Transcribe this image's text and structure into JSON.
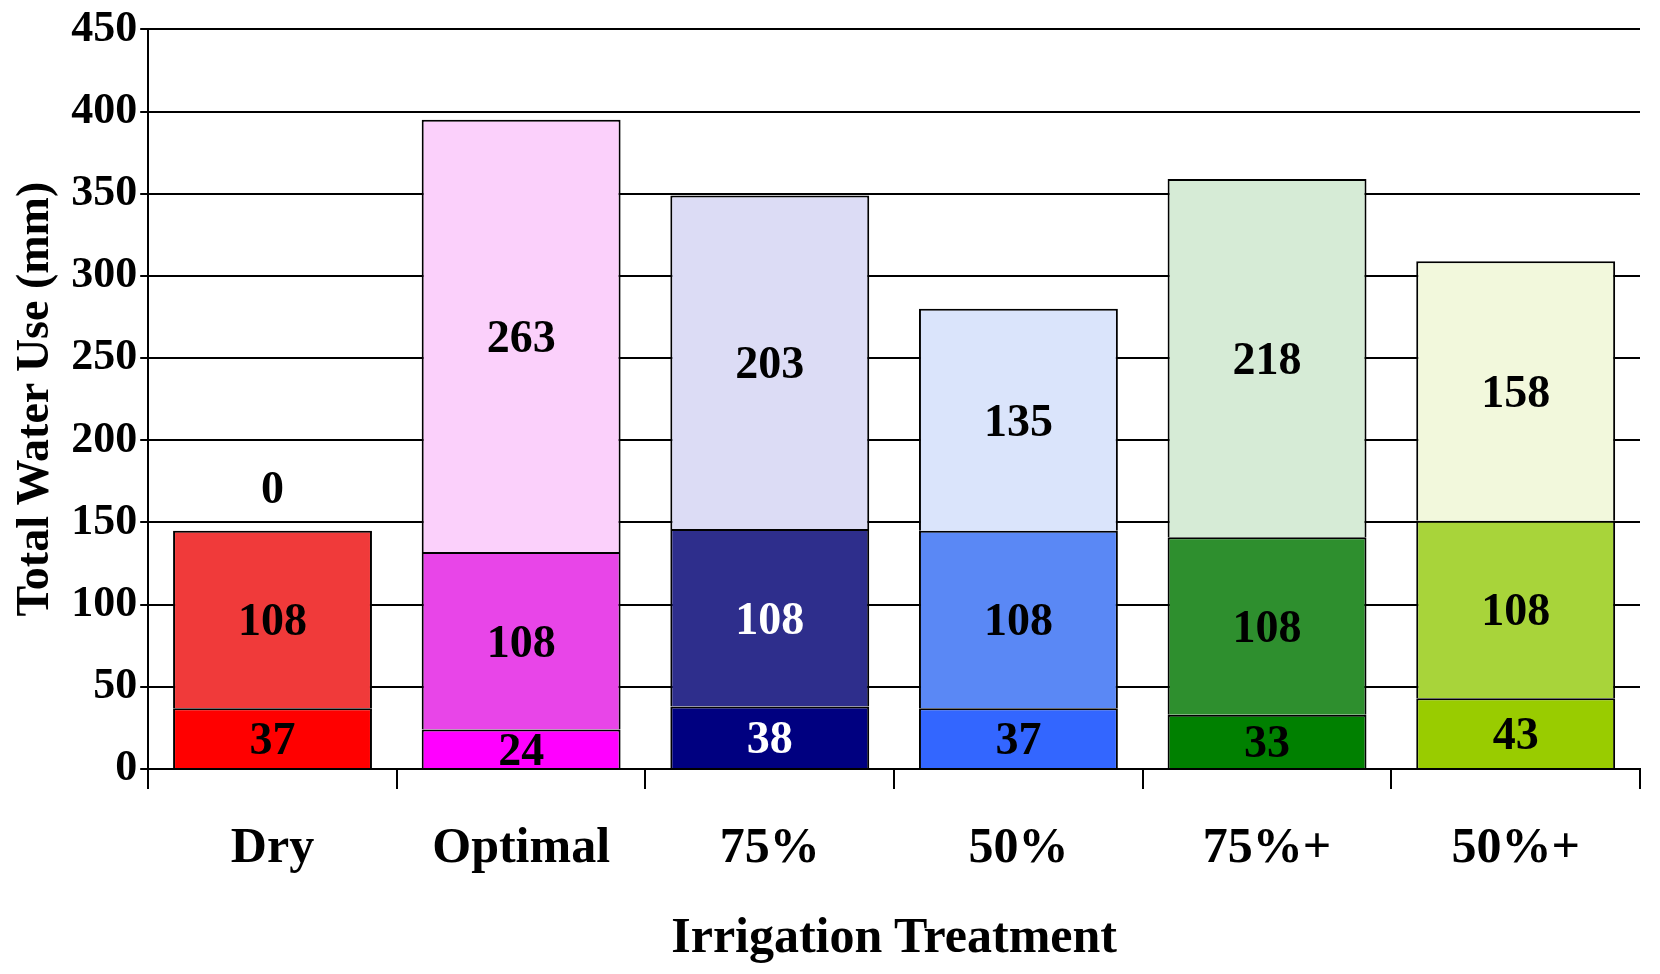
{
  "chart_data": {
    "type": "bar",
    "stacked": true,
    "xlabel": "Irrigation Treatment",
    "ylabel": "Total Water Use (mm)",
    "categories": [
      "Dry",
      "Optimal",
      "75%",
      "50%",
      "75%+",
      "50%+"
    ],
    "series": [
      {
        "colors": [
          "#ff0000",
          "#ff00ff",
          "#000080",
          "#3366ff",
          "#008000",
          "#99cc00"
        ],
        "values": [
          37,
          24,
          38,
          37,
          33,
          43
        ]
      },
      {
        "colors": [
          "#f03a3a",
          "#e845e8",
          "#2e2e8c",
          "#5a88f5",
          "#2e8f2e",
          "#a8d43a"
        ],
        "values": [
          108,
          108,
          108,
          108,
          108,
          108
        ]
      },
      {
        "colors": [
          "#ffffff",
          "#fbd0fb",
          "#dcdcf5",
          "#dae4fb",
          "#d6ebd6",
          "#f2f8dc"
        ],
        "values": [
          0,
          263,
          203,
          135,
          218,
          158
        ]
      }
    ],
    "ylim": [
      0,
      450
    ],
    "yticks": [
      0,
      50,
      100,
      150,
      200,
      250,
      300,
      350,
      400,
      450
    ],
    "grid": "y",
    "data_labels": true,
    "legend": false
  }
}
